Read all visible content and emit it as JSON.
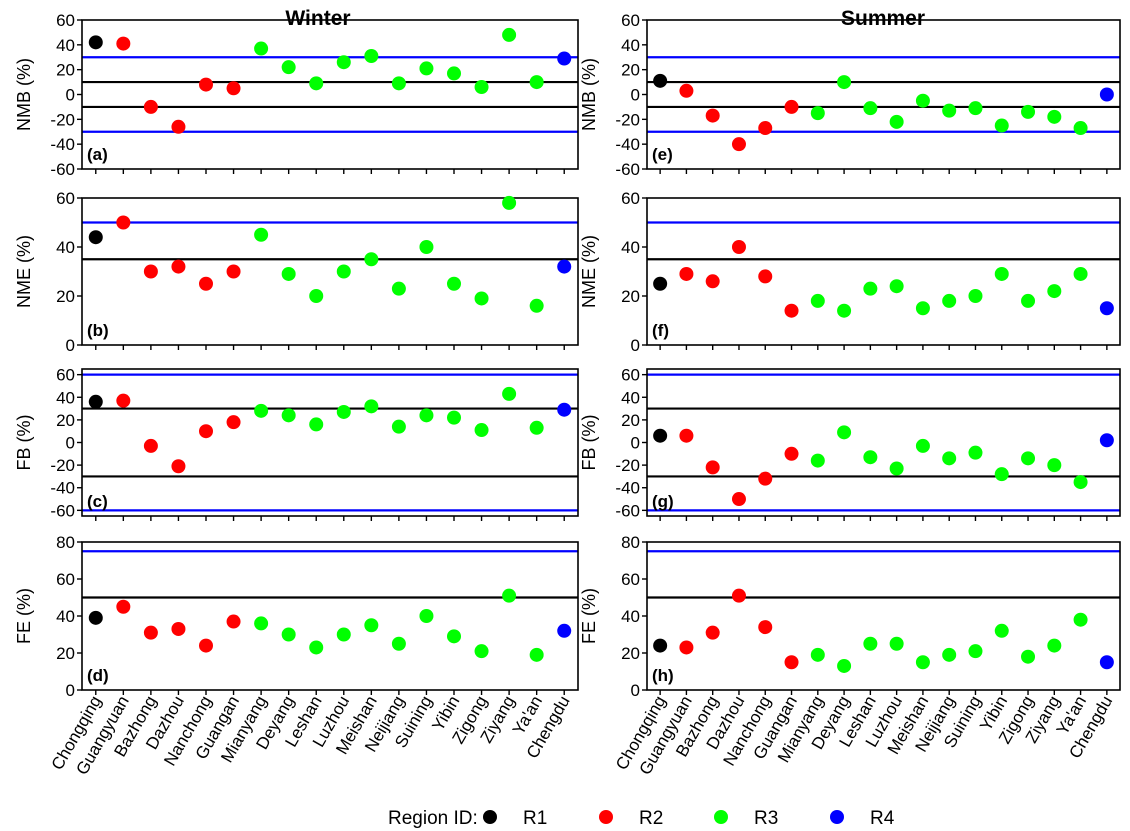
{
  "figure": {
    "column_titles": [
      "Winter",
      "Summer"
    ],
    "legend": {
      "title": "Region ID:",
      "items": [
        {
          "label": "R1",
          "color": "#000000"
        },
        {
          "label": "R2",
          "color": "#ff0000"
        },
        {
          "label": "R3",
          "color": "#00ff00"
        },
        {
          "label": "R4",
          "color": "#0000ff"
        }
      ]
    }
  },
  "chart_data": {
    "type": "scatter",
    "categories": [
      "Chongqing",
      "Guangyuan",
      "Bazhong",
      "Dazhou",
      "Nanchong",
      "Guangan",
      "Mianyang",
      "Deyang",
      "Leshan",
      "Luzhou",
      "Meishan",
      "Neijiang",
      "Suining",
      "Yibin",
      "Zigong",
      "Ziyang",
      "Ya'an",
      "Chengdu"
    ],
    "regions": [
      "R1",
      "R2",
      "R2",
      "R2",
      "R2",
      "R2",
      "R3",
      "R3",
      "R3",
      "R3",
      "R3",
      "R3",
      "R3",
      "R3",
      "R3",
      "R3",
      "R3",
      "R4"
    ],
    "region_colors": {
      "R1": "#000000",
      "R2": "#ff0000",
      "R3": "#00ff00",
      "R4": "#0000ff"
    },
    "threshold_colors": {
      "goal": "#000000",
      "criteria": "#0000ff"
    },
    "metrics": [
      {
        "ylabel": "NMB (%)",
        "ylim": [
          -60,
          60
        ],
        "ticks": [
          -60,
          -40,
          -20,
          0,
          20,
          40,
          60
        ],
        "goal": [
          -10,
          10
        ],
        "criteria": [
          -30,
          30
        ]
      },
      {
        "ylabel": "NME (%)",
        "ylim": [
          0,
          60
        ],
        "ticks": [
          0,
          20,
          40,
          60
        ],
        "goal": [
          35
        ],
        "criteria": [
          50
        ]
      },
      {
        "ylabel": "FB (%)",
        "ylim": [
          -65,
          65
        ],
        "ticks": [
          -60,
          -40,
          -20,
          0,
          20,
          40,
          60
        ],
        "goal": [
          -30,
          30
        ],
        "criteria": [
          -60,
          60
        ]
      },
      {
        "ylabel": "FE (%)",
        "ylim": [
          0,
          80
        ],
        "ticks": [
          0,
          20,
          40,
          60,
          80
        ],
        "goal": [
          50
        ],
        "criteria": [
          75
        ]
      }
    ],
    "panels": [
      {
        "label": "(a)",
        "season": "Winter",
        "metric": "NMB (%)",
        "values": [
          42,
          41,
          -10,
          -26,
          8,
          5,
          37,
          22,
          9,
          26,
          31,
          9,
          21,
          17,
          6,
          48,
          10,
          29
        ]
      },
      {
        "label": "(b)",
        "season": "Winter",
        "metric": "NME (%)",
        "values": [
          44,
          50,
          30,
          32,
          25,
          30,
          45,
          29,
          20,
          30,
          35,
          23,
          40,
          25,
          19,
          58,
          16,
          32
        ]
      },
      {
        "label": "(c)",
        "season": "Winter",
        "metric": "FB (%)",
        "values": [
          36,
          37,
          -3,
          -21,
          10,
          18,
          28,
          24,
          16,
          27,
          32,
          14,
          24,
          22,
          11,
          43,
          13,
          29
        ]
      },
      {
        "label": "(d)",
        "season": "Winter",
        "metric": "FE (%)",
        "values": [
          39,
          45,
          31,
          33,
          24,
          37,
          36,
          30,
          23,
          30,
          35,
          25,
          40,
          29,
          21,
          51,
          19,
          32
        ]
      },
      {
        "label": "(e)",
        "season": "Summer",
        "metric": "NMB (%)",
        "values": [
          11,
          3,
          -17,
          -40,
          -27,
          -10,
          -15,
          10,
          -11,
          -22,
          -5,
          -13,
          -11,
          -25,
          -14,
          -18,
          -27,
          0
        ]
      },
      {
        "label": "(f)",
        "season": "Summer",
        "metric": "NME (%)",
        "values": [
          25,
          29,
          26,
          40,
          28,
          14,
          18,
          14,
          23,
          24,
          15,
          18,
          20,
          29,
          18,
          22,
          29,
          15
        ]
      },
      {
        "label": "(g)",
        "season": "Summer",
        "metric": "FB (%)",
        "values": [
          6,
          6,
          -22,
          -50,
          -32,
          -10,
          -16,
          9,
          -13,
          -23,
          -3,
          -14,
          -9,
          -28,
          -14,
          -20,
          -35,
          2
        ]
      },
      {
        "label": "(h)",
        "season": "Summer",
        "metric": "FE (%)",
        "values": [
          24,
          23,
          31,
          51,
          34,
          15,
          19,
          13,
          25,
          25,
          15,
          19,
          21,
          32,
          18,
          24,
          38,
          15
        ]
      }
    ]
  }
}
